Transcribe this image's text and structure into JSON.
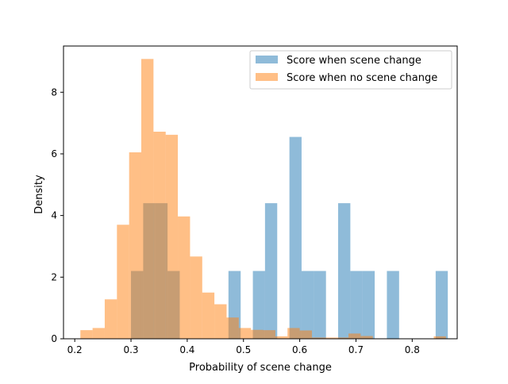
{
  "chart_data": {
    "type": "histogram",
    "title": "",
    "xlabel": "Probability of scene change",
    "ylabel": "Density",
    "xlim": [
      0.18,
      0.88
    ],
    "ylim": [
      0,
      9.5
    ],
    "xticks": [
      0.2,
      0.3,
      0.4,
      0.5,
      0.6,
      0.7,
      0.8
    ],
    "xtick_labels": [
      "0.2",
      "0.3",
      "0.4",
      "0.5",
      "0.6",
      "0.7",
      "0.8"
    ],
    "yticks": [
      0,
      2,
      4,
      6,
      8
    ],
    "ytick_labels": [
      "0",
      "2",
      "4",
      "6",
      "8"
    ],
    "grid": false,
    "legend_position": "top-right",
    "series": [
      {
        "name": "Score when scene change",
        "color": "#1f77b4",
        "alpha": 0.5,
        "bin_edges": [
          0.3,
          0.3217,
          0.3433,
          0.365,
          0.3867,
          0.4083,
          0.43,
          0.4517,
          0.4733,
          0.495,
          0.5167,
          0.5383,
          0.56,
          0.5817,
          0.6033,
          0.625,
          0.6467,
          0.6683,
          0.69,
          0.7117,
          0.7333,
          0.755,
          0.7767,
          0.7983,
          0.82,
          0.8417,
          0.8633
        ],
        "values": [
          2.2,
          4.4,
          4.4,
          2.2,
          0,
          0,
          0,
          0,
          2.2,
          0,
          2.2,
          4.4,
          0,
          6.55,
          2.2,
          2.2,
          0,
          4.4,
          2.2,
          2.2,
          0,
          2.2,
          0,
          0,
          0,
          2.2
        ]
      },
      {
        "name": "Score when no scene change",
        "color": "#ff7f0e",
        "alpha": 0.5,
        "bin_edges": [
          0.21,
          0.2317,
          0.2533,
          0.275,
          0.2967,
          0.3183,
          0.34,
          0.3617,
          0.3833,
          0.405,
          0.4267,
          0.4483,
          0.47,
          0.4917,
          0.5133,
          0.535,
          0.5567,
          0.5783,
          0.6,
          0.6217,
          0.6433,
          0.665,
          0.6867,
          0.7083,
          0.73,
          0.7517,
          0.7733,
          0.795,
          0.8167,
          0.8383,
          0.86
        ],
        "values": [
          0.28,
          0.35,
          1.28,
          3.7,
          6.05,
          9.08,
          6.72,
          6.62,
          3.97,
          2.67,
          1.5,
          1.12,
          0.69,
          0.35,
          0.29,
          0.28,
          0.08,
          0.35,
          0.27,
          0.04,
          0.04,
          0.04,
          0.17,
          0.09,
          0.0,
          0.0,
          0.0,
          0.0,
          0.0,
          0.08
        ]
      }
    ]
  }
}
